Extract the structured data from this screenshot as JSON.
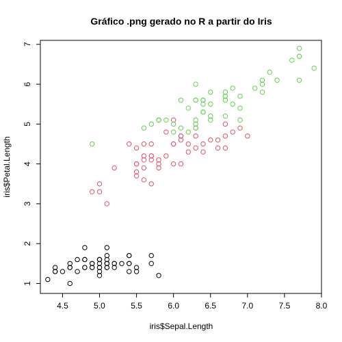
{
  "chart_data": {
    "type": "scatter",
    "title": "Gráfico .png gerado no R a partir do Iris",
    "xlabel": "iris$Sepal.Length",
    "ylabel": "iris$Petal.Length",
    "xlim": [
      4.2,
      8.0
    ],
    "ylim": [
      0.75,
      7.1
    ],
    "x_ticks": [
      "4.5",
      "5.0",
      "5.5",
      "6.0",
      "6.5",
      "7.0",
      "7.5",
      "8.0"
    ],
    "y_ticks": [
      "1",
      "2",
      "3",
      "4",
      "5",
      "6",
      "7"
    ],
    "grid": false,
    "series": [
      {
        "color": "#000000",
        "points": [
          [
            5.1,
            1.4
          ],
          [
            4.9,
            1.4
          ],
          [
            4.7,
            1.3
          ],
          [
            4.6,
            1.5
          ],
          [
            5.0,
            1.4
          ],
          [
            5.4,
            1.7
          ],
          [
            4.6,
            1.4
          ],
          [
            5.0,
            1.5
          ],
          [
            4.4,
            1.4
          ],
          [
            4.9,
            1.5
          ],
          [
            5.4,
            1.5
          ],
          [
            4.8,
            1.6
          ],
          [
            4.8,
            1.4
          ],
          [
            4.3,
            1.1
          ],
          [
            5.8,
            1.2
          ],
          [
            5.7,
            1.5
          ],
          [
            5.4,
            1.3
          ],
          [
            5.1,
            1.4
          ],
          [
            5.7,
            1.7
          ],
          [
            5.1,
            1.5
          ],
          [
            5.4,
            1.7
          ],
          [
            5.1,
            1.5
          ],
          [
            4.6,
            1.0
          ],
          [
            5.1,
            1.7
          ],
          [
            4.8,
            1.9
          ],
          [
            5.0,
            1.6
          ],
          [
            5.0,
            1.6
          ],
          [
            5.2,
            1.5
          ],
          [
            5.2,
            1.4
          ],
          [
            4.7,
            1.6
          ],
          [
            4.8,
            1.6
          ],
          [
            5.4,
            1.5
          ],
          [
            5.2,
            1.5
          ],
          [
            5.5,
            1.4
          ],
          [
            4.9,
            1.5
          ],
          [
            5.0,
            1.2
          ],
          [
            5.5,
            1.3
          ],
          [
            4.9,
            1.4
          ],
          [
            4.4,
            1.3
          ],
          [
            5.1,
            1.5
          ],
          [
            5.0,
            1.3
          ],
          [
            4.5,
            1.3
          ],
          [
            4.4,
            1.3
          ],
          [
            5.0,
            1.6
          ],
          [
            5.1,
            1.9
          ],
          [
            4.8,
            1.4
          ],
          [
            5.1,
            1.6
          ],
          [
            4.6,
            1.4
          ],
          [
            5.3,
            1.5
          ],
          [
            5.0,
            1.4
          ]
        ]
      },
      {
        "color": "#DF536B",
        "points": [
          [
            7.0,
            4.7
          ],
          [
            6.4,
            4.5
          ],
          [
            6.9,
            4.9
          ],
          [
            5.5,
            4.0
          ],
          [
            6.5,
            4.6
          ],
          [
            5.7,
            4.5
          ],
          [
            6.3,
            4.7
          ],
          [
            4.9,
            3.3
          ],
          [
            6.6,
            4.6
          ],
          [
            5.2,
            3.9
          ],
          [
            5.0,
            3.5
          ],
          [
            5.9,
            4.2
          ],
          [
            6.0,
            4.0
          ],
          [
            6.1,
            4.7
          ],
          [
            5.6,
            3.6
          ],
          [
            6.7,
            4.4
          ],
          [
            5.6,
            4.5
          ],
          [
            5.8,
            4.1
          ],
          [
            6.2,
            4.5
          ],
          [
            5.6,
            3.9
          ],
          [
            5.9,
            4.8
          ],
          [
            6.1,
            4.0
          ],
          [
            6.3,
            4.9
          ],
          [
            6.1,
            4.7
          ],
          [
            6.4,
            4.3
          ],
          [
            6.6,
            4.4
          ],
          [
            6.8,
            4.8
          ],
          [
            6.7,
            5.0
          ],
          [
            6.0,
            4.5
          ],
          [
            5.7,
            3.5
          ],
          [
            5.5,
            3.8
          ],
          [
            5.5,
            3.7
          ],
          [
            5.8,
            3.9
          ],
          [
            6.0,
            5.1
          ],
          [
            5.4,
            4.5
          ],
          [
            6.0,
            4.5
          ],
          [
            6.7,
            4.7
          ],
          [
            6.3,
            4.4
          ],
          [
            5.6,
            4.1
          ],
          [
            5.5,
            4.0
          ],
          [
            5.5,
            4.4
          ],
          [
            6.1,
            4.6
          ],
          [
            5.8,
            4.0
          ],
          [
            5.0,
            3.3
          ],
          [
            5.6,
            4.2
          ],
          [
            5.7,
            4.2
          ],
          [
            5.7,
            4.2
          ],
          [
            6.2,
            4.3
          ],
          [
            5.1,
            3.0
          ],
          [
            5.7,
            4.1
          ]
        ]
      },
      {
        "color": "#61D04F",
        "points": [
          [
            6.3,
            6.0
          ],
          [
            5.8,
            5.1
          ],
          [
            7.1,
            5.9
          ],
          [
            6.3,
            5.6
          ],
          [
            6.5,
            5.8
          ],
          [
            7.6,
            6.6
          ],
          [
            4.9,
            4.5
          ],
          [
            7.3,
            6.3
          ],
          [
            6.7,
            5.8
          ],
          [
            7.2,
            6.1
          ],
          [
            6.5,
            5.1
          ],
          [
            6.4,
            5.3
          ],
          [
            6.8,
            5.5
          ],
          [
            5.7,
            5.0
          ],
          [
            5.8,
            5.1
          ],
          [
            6.4,
            5.3
          ],
          [
            6.5,
            5.5
          ],
          [
            7.7,
            6.7
          ],
          [
            7.7,
            6.9
          ],
          [
            6.0,
            5.0
          ],
          [
            6.9,
            5.7
          ],
          [
            5.6,
            4.9
          ],
          [
            7.7,
            6.7
          ],
          [
            6.3,
            4.9
          ],
          [
            6.7,
            5.7
          ],
          [
            7.2,
            6.0
          ],
          [
            6.2,
            4.8
          ],
          [
            6.1,
            4.9
          ],
          [
            6.4,
            5.6
          ],
          [
            7.2,
            5.8
          ],
          [
            7.4,
            6.1
          ],
          [
            7.9,
            6.4
          ],
          [
            6.4,
            5.6
          ],
          [
            6.3,
            5.1
          ],
          [
            6.1,
            5.6
          ],
          [
            7.7,
            6.1
          ],
          [
            6.3,
            5.6
          ],
          [
            6.4,
            5.5
          ],
          [
            6.0,
            4.8
          ],
          [
            6.9,
            5.4
          ],
          [
            6.7,
            5.6
          ],
          [
            6.9,
            5.1
          ],
          [
            5.8,
            5.1
          ],
          [
            6.8,
            5.9
          ],
          [
            6.7,
            5.7
          ],
          [
            6.7,
            5.2
          ],
          [
            6.3,
            5.0
          ],
          [
            6.5,
            5.2
          ],
          [
            6.2,
            5.4
          ],
          [
            5.9,
            5.1
          ]
        ]
      }
    ]
  }
}
